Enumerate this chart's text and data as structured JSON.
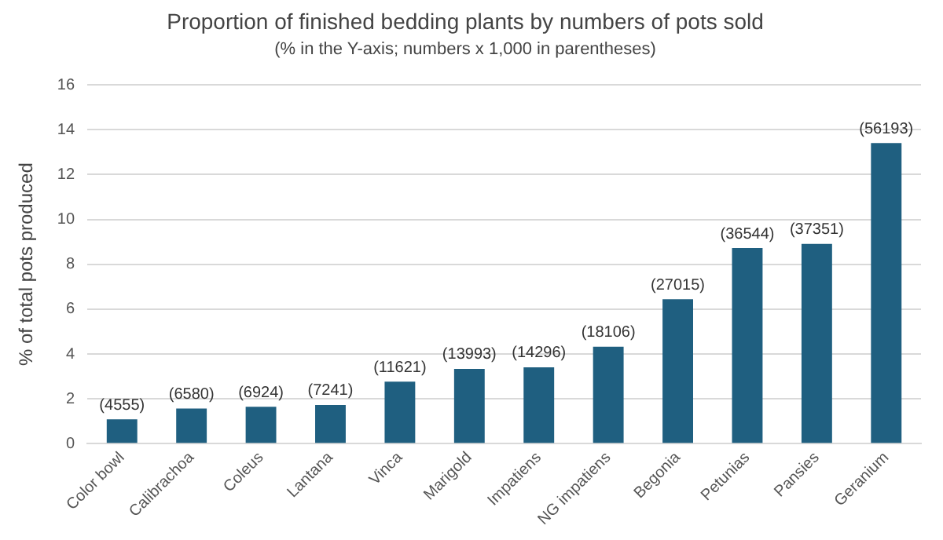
{
  "chart_data": {
    "type": "bar",
    "title": "Proportion of finished bedding plants by numbers of pots sold",
    "subtitle": "(% in the Y-axis; numbers x 1,000 in parentheses)",
    "ylabel": "% of total pots produced",
    "categories": [
      "Color bowl",
      "Calibrachoa",
      "Coleus",
      "Lantana",
      "Vinca",
      "Marigold",
      "Impatiens",
      "NG impatiens",
      "Begonia",
      "Petunias",
      "Pansies",
      "Geranium"
    ],
    "values": [
      1.09,
      1.57,
      1.65,
      1.73,
      2.77,
      3.34,
      3.41,
      4.32,
      6.44,
      8.72,
      8.91,
      13.4
    ],
    "annotations": [
      {
        "text": "(4555)",
        "x": "Color bowl",
        "y": 1.09
      },
      {
        "text": "(6580)",
        "x": "Calibrachoa",
        "y": 1.57
      },
      {
        "text": "(6924)",
        "x": "Coleus",
        "y": 1.65
      },
      {
        "text": "(7241)",
        "x": "Lantana",
        "y": 1.73
      },
      {
        "text": "(11621)",
        "x": "Vinca",
        "y": 2.77
      },
      {
        "text": "(13993)",
        "x": "Marigold",
        "y": 3.34
      },
      {
        "text": "(14296)",
        "x": "Impatiens",
        "y": 3.41
      },
      {
        "text": "(18106)",
        "x": "NG impatiens",
        "y": 4.32
      },
      {
        "text": "(27015)",
        "x": "Begonia",
        "y": 6.44
      },
      {
        "text": "(36544)",
        "x": "Petunias",
        "y": 8.72
      },
      {
        "text": "(37351)",
        "x": "Pansies",
        "y": 8.91
      },
      {
        "text": "(56193)",
        "x": "Geranium",
        "y": 13.4
      }
    ],
    "color": "#1f5f80",
    "ylim": [
      0,
      16
    ],
    "yticks": [
      0,
      2,
      4,
      6,
      8,
      10,
      12,
      14,
      16
    ],
    "grid": "y",
    "legend": false
  }
}
